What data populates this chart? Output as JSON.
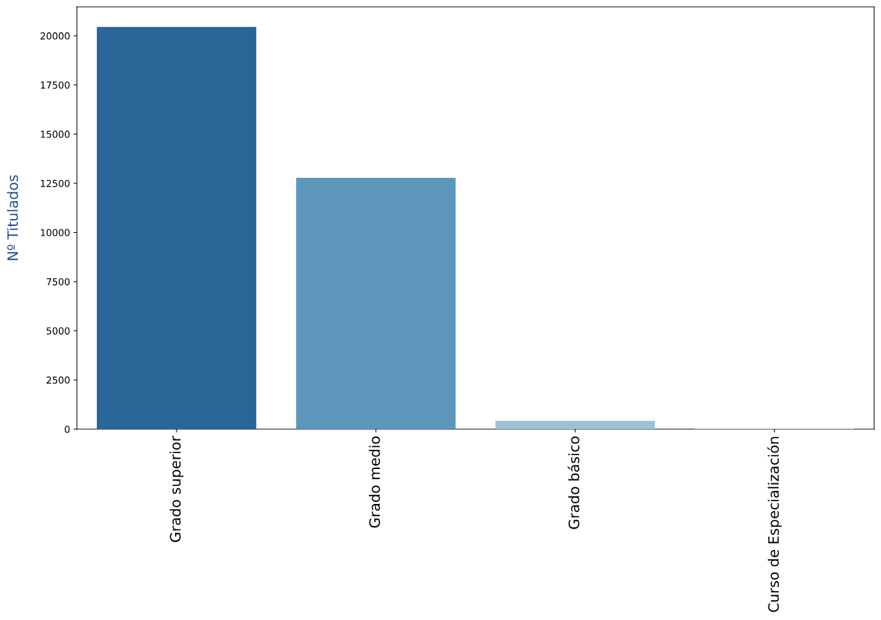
{
  "chart_data": {
    "type": "bar",
    "ylabel": "Nº Titulados",
    "categories": [
      "Grado superior",
      "Grado medio",
      "Grado básico",
      "Curso de Especialización"
    ],
    "values": [
      20450,
      12780,
      420,
      70
    ],
    "colors": [
      "#2a6598",
      "#5c96bb",
      "#9bc1d6",
      "#d2e3ef"
    ],
    "ylim": [
      0,
      21470
    ],
    "yticks": [
      0,
      2500,
      5000,
      7500,
      10000,
      12500,
      15000,
      17500,
      20000
    ],
    "grid": false
  }
}
